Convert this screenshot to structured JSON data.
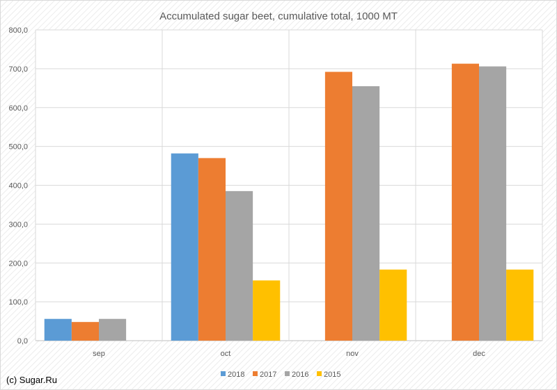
{
  "chart_data": {
    "type": "bar",
    "title": "Accumulated sugar beet, cumulative total, 1000 MT",
    "categories": [
      "sep",
      "oct",
      "nov",
      "dec"
    ],
    "series": [
      {
        "name": "2018",
        "color": "#5b9bd5",
        "values": [
          56,
          482,
          null,
          null
        ]
      },
      {
        "name": "2017",
        "color": "#ed7d31",
        "values": [
          48,
          470,
          692,
          713
        ]
      },
      {
        "name": "2016",
        "color": "#a5a5a5",
        "values": [
          56,
          385,
          655,
          706
        ]
      },
      {
        "name": "2015",
        "color": "#ffc000",
        "values": [
          null,
          155,
          183,
          183
        ]
      }
    ],
    "ylim": [
      0,
      800
    ],
    "yticks": [
      "0,0",
      "100,0",
      "200,0",
      "300,0",
      "400,0",
      "500,0",
      "600,0",
      "700,0",
      "800,0"
    ],
    "grid": true,
    "legend_position": "bottom"
  },
  "footer": {
    "credit": "(c) Sugar.Ru"
  }
}
